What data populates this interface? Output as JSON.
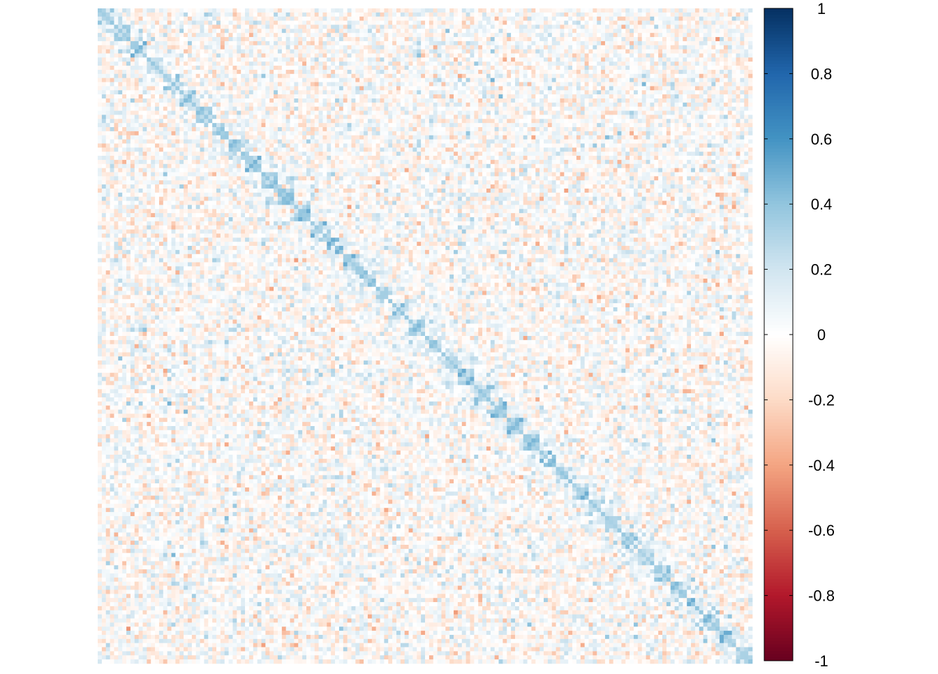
{
  "chart_data": {
    "type": "heatmap",
    "title": "",
    "xlabel": "",
    "ylabel": "",
    "matrix_size": 160,
    "value_range": [
      -1,
      1
    ],
    "diagonal_block_structure": {
      "description_values": "correlation matrix; mostly weak noise between about -0.3 and 0.3, with mild positive small blocks (about 0.2-0.4) along the main diagonal"
    },
    "colorbar": {
      "min": -1,
      "max": 1,
      "ticks": [
        1,
        0.8,
        0.6,
        0.4,
        0.2,
        0,
        -0.2,
        -0.4,
        -0.6,
        -0.8,
        -1
      ],
      "tick_labels": [
        "1",
        "0.8",
        "0.6",
        "0.4",
        "0.2",
        "0",
        "-0.2",
        "-0.4",
        "-0.6",
        "-0.8",
        "-1"
      ]
    },
    "color_scale": [
      {
        "value": -1,
        "color": "#67001F"
      },
      {
        "value": -0.8,
        "color": "#B2182B"
      },
      {
        "value": -0.6,
        "color": "#D6604D"
      },
      {
        "value": -0.4,
        "color": "#F4A582"
      },
      {
        "value": -0.2,
        "color": "#FDDBC7"
      },
      {
        "value": 0,
        "color": "#FFFFFF"
      },
      {
        "value": 0.2,
        "color": "#D1E5F0"
      },
      {
        "value": 0.4,
        "color": "#92C5DE"
      },
      {
        "value": 0.6,
        "color": "#4393C3"
      },
      {
        "value": 0.8,
        "color": "#2166AC"
      },
      {
        "value": 1,
        "color": "#053061"
      }
    ]
  }
}
